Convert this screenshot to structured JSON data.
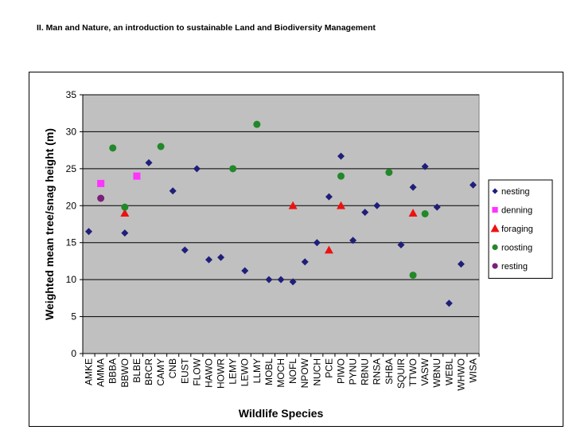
{
  "header": {
    "title": "II. Man and Nature, an introduction to sustainable Land and Biodiversity Management"
  },
  "colors": {
    "nesting": "#1f1f7a",
    "denning": "#ff33ff",
    "foraging": "#ee1111",
    "roosting": "#22882a",
    "resting": "#7a1f7a",
    "plot_bg": "#c0c0c0",
    "grid": "#000000"
  },
  "chart_data": {
    "type": "scatter",
    "title": "",
    "xlabel": "Wildlife Species",
    "ylabel": "Weighted  mean tree/snag  height (m)",
    "ylim": [
      0,
      35
    ],
    "yticks": [
      0,
      5,
      10,
      15,
      20,
      25,
      30,
      35
    ],
    "grid": true,
    "legend_position": "right",
    "categories": [
      "AMKE",
      "AMMA",
      "BBBA",
      "BBWO",
      "BLBE",
      "BRCR",
      "CAMY",
      "CNB",
      "EUST",
      "FLOW",
      "HAWO",
      "HOWR",
      "LEMY",
      "LEWO",
      "LLMY",
      "MOBL",
      "MOCH",
      "NOFL",
      "NPOW",
      "NUCH",
      "PCE",
      "PIWO",
      "PYNU",
      "RBNU",
      "RNSA",
      "SHBA",
      "SQUIR",
      "TTWO",
      "VASW",
      "WBNU",
      "WEBL",
      "WHWO",
      "WISA"
    ],
    "series": [
      {
        "name": "nesting",
        "marker": "diamond",
        "points": [
          {
            "x": "AMKE",
            "y": 16.5
          },
          {
            "x": "BBWO",
            "y": 16.3
          },
          {
            "x": "BRCR",
            "y": 25.8
          },
          {
            "x": "CNB",
            "y": 22.0
          },
          {
            "x": "EUST",
            "y": 14.0
          },
          {
            "x": "FLOW",
            "y": 25.0
          },
          {
            "x": "HAWO",
            "y": 12.7
          },
          {
            "x": "HOWR",
            "y": 13.0
          },
          {
            "x": "LEWO",
            "y": 11.2
          },
          {
            "x": "MOBL",
            "y": 10.0
          },
          {
            "x": "MOCH",
            "y": 10.0
          },
          {
            "x": "NOFL",
            "y": 9.7
          },
          {
            "x": "NPOW",
            "y": 12.4
          },
          {
            "x": "NUCH",
            "y": 15.0
          },
          {
            "x": "PCE",
            "y": 21.2
          },
          {
            "x": "PIWO",
            "y": 26.7
          },
          {
            "x": "PYNU",
            "y": 15.3
          },
          {
            "x": "RBNU",
            "y": 19.1
          },
          {
            "x": "RNSA",
            "y": 20.0
          },
          {
            "x": "SQUIR",
            "y": 14.7
          },
          {
            "x": "TTWO",
            "y": 22.5
          },
          {
            "x": "VASW",
            "y": 25.3
          },
          {
            "x": "WBNU",
            "y": 19.8
          },
          {
            "x": "WEBL",
            "y": 6.8
          },
          {
            "x": "WHWO",
            "y": 12.1
          },
          {
            "x": "WISA",
            "y": 22.8
          }
        ]
      },
      {
        "name": "denning",
        "marker": "square",
        "points": [
          {
            "x": "AMMA",
            "y": 23.0
          },
          {
            "x": "BLBE",
            "y": 24.0
          }
        ]
      },
      {
        "name": "foraging",
        "marker": "triangle",
        "points": [
          {
            "x": "BBWO",
            "y": 19.0
          },
          {
            "x": "NOFL",
            "y": 20.0
          },
          {
            "x": "PCE",
            "y": 14.0
          },
          {
            "x": "PIWO",
            "y": 20.0
          },
          {
            "x": "TTWO",
            "y": 19.0
          }
        ]
      },
      {
        "name": "roosting",
        "marker": "circle",
        "points": [
          {
            "x": "BBBA",
            "y": 27.8
          },
          {
            "x": "BBWO",
            "y": 19.8
          },
          {
            "x": "CAMY",
            "y": 28.0
          },
          {
            "x": "LEMY",
            "y": 25.0
          },
          {
            "x": "LLMY",
            "y": 31.0
          },
          {
            "x": "PIWO",
            "y": 24.0
          },
          {
            "x": "SHBA",
            "y": 24.5
          },
          {
            "x": "TTWO",
            "y": 10.6
          },
          {
            "x": "VASW",
            "y": 18.9
          }
        ]
      },
      {
        "name": "resting",
        "marker": "circle",
        "points": [
          {
            "x": "AMMA",
            "y": 21.0
          }
        ]
      }
    ]
  }
}
